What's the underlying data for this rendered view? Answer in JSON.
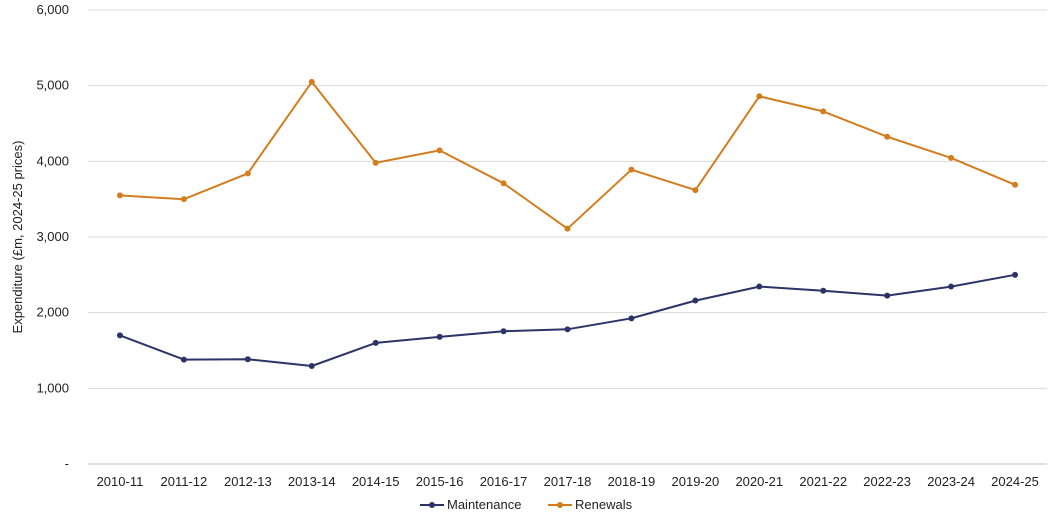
{
  "chart_data": {
    "type": "line",
    "title": "",
    "xlabel": "",
    "ylabel": "Expenditure (£m, 2024-25 prices)",
    "categories": [
      "2010-11",
      "2011-12",
      "2012-13",
      "2013-14",
      "2014-15",
      "2015-16",
      "2016-17",
      "2017-18",
      "2018-19",
      "2019-20",
      "2020-21",
      "2021-22",
      "2022-23",
      "2023-24",
      "2024-25"
    ],
    "y_ticks": [
      0,
      1000,
      2000,
      3000,
      4000,
      5000,
      6000
    ],
    "y_tick_labels": [
      "-",
      "1,000",
      "2,000",
      "3,000",
      "4,000",
      "5,000",
      "6,000"
    ],
    "ylim": [
      0,
      6000
    ],
    "grid": true,
    "legend_position": "bottom",
    "series": [
      {
        "name": "Maintenance",
        "color": "#2b3467",
        "values": [
          1700,
          1380,
          1385,
          1295,
          1600,
          1680,
          1755,
          1780,
          1925,
          2160,
          2345,
          2290,
          2225,
          2345,
          2500
        ]
      },
      {
        "name": "Renewals",
        "color": "#d27d1f",
        "values": [
          3550,
          3500,
          3840,
          5050,
          3980,
          4145,
          3710,
          3110,
          3890,
          3620,
          4860,
          4660,
          4325,
          4045,
          3690
        ]
      }
    ]
  }
}
